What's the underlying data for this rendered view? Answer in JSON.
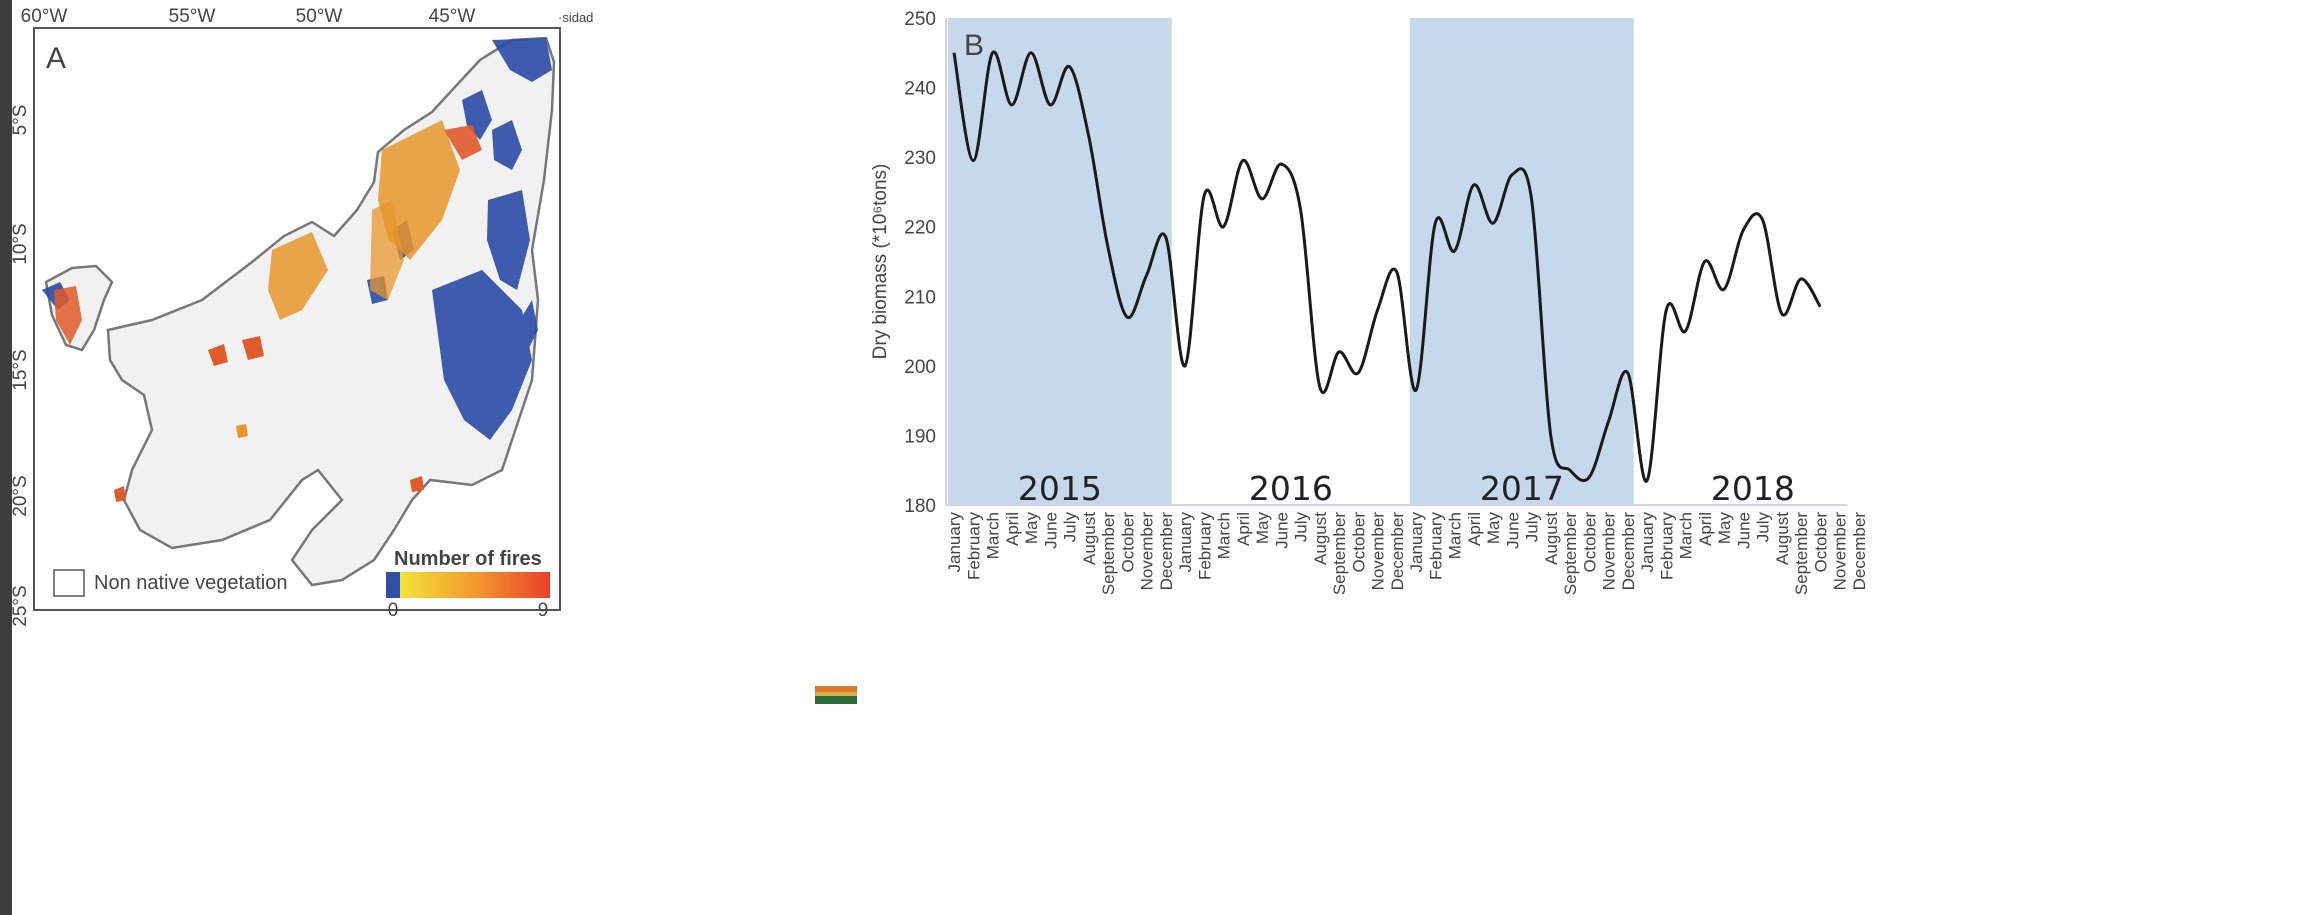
{
  "map_panel": {
    "panel_label": "A",
    "corner_text": "·sidad",
    "lon_ticks": [
      "60°W",
      "55°W",
      "50°W",
      "45°W"
    ],
    "lat_ticks": [
      "5°S",
      "10°S",
      "15°S",
      "20°S",
      "25°S"
    ],
    "legend": {
      "non_native_label": "Non native vegetation",
      "fires_title": "Number of fires",
      "fires_min": "0",
      "fires_max": "9",
      "colors": [
        "#2f4fa8",
        "#f2e33a",
        "#f29a2e",
        "#e8402a"
      ]
    },
    "colors": {
      "frame": "#555555",
      "outline": "#777777",
      "low_fire": "#2f4fa8",
      "mid_fire": "#e8952c",
      "high_fire": "#e05a2a"
    }
  },
  "chart_data": {
    "type": "line",
    "panel_label": "B",
    "ylabel": "Dry biomass (*10⁶tons)",
    "ylim": [
      180,
      250
    ],
    "yticks": [
      180,
      190,
      200,
      210,
      220,
      230,
      240,
      250
    ],
    "years": [
      "2015",
      "2016",
      "2017",
      "2018"
    ],
    "shaded_years": [
      "2015",
      "2017"
    ],
    "months": [
      "January",
      "February",
      "March",
      "April",
      "May",
      "June",
      "July",
      "August",
      "September",
      "October",
      "November",
      "December"
    ],
    "series": [
      {
        "values": [
          245,
          229.5,
          245,
          237.5,
          245,
          237.5,
          243,
          233,
          217,
          207,
          213,
          218.5,
          200,
          224.5,
          220,
          229.5,
          224,
          229,
          222.5,
          197,
          202,
          199,
          208,
          213.5,
          196.5,
          220.5,
          216.5,
          226,
          220.5,
          227.5,
          224,
          190,
          185,
          184,
          192,
          199,
          183.5,
          208,
          205,
          215,
          211,
          219.5,
          221,
          207.5,
          212.5,
          208.5
        ]
      }
    ],
    "colors": {
      "line": "#1a1a1a",
      "shade": "#c6d9ec",
      "axis": "#d9d0e6"
    }
  }
}
